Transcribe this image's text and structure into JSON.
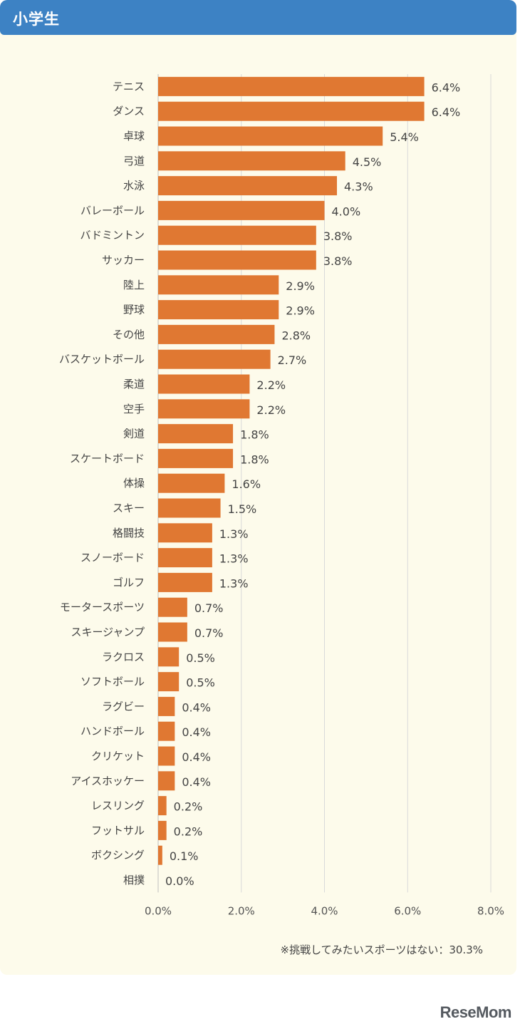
{
  "header": {
    "title": "小学生"
  },
  "note": "※挑戦してみたいスポーツはない：30.3%",
  "logo": {
    "text": "ReseMom"
  },
  "colors": {
    "bar": "#e07832",
    "header": "#3d82c4",
    "panel": "#fdfbeb",
    "grid": "#d9d9d9"
  },
  "chart_data": {
    "type": "bar",
    "orientation": "horizontal",
    "categories": [
      "テニス",
      "ダンス",
      "卓球",
      "弓道",
      "水泳",
      "バレーボール",
      "バドミントン",
      "サッカー",
      "陸上",
      "野球",
      "その他",
      "バスケットボール",
      "柔道",
      "空手",
      "剣道",
      "スケートボード",
      "体操",
      "スキー",
      "格闘技",
      "スノーボード",
      "ゴルフ",
      "モータースポーツ",
      "スキージャンプ",
      "ラクロス",
      "ソフトボール",
      "ラグビー",
      "ハンドボール",
      "クリケット",
      "アイスホッケー",
      "レスリング",
      "フットサル",
      "ボクシング",
      "相撲"
    ],
    "values": [
      6.4,
      6.4,
      5.4,
      4.5,
      4.3,
      4.0,
      3.8,
      3.8,
      2.9,
      2.9,
      2.8,
      2.7,
      2.2,
      2.2,
      1.8,
      1.8,
      1.6,
      1.5,
      1.3,
      1.3,
      1.3,
      0.7,
      0.7,
      0.5,
      0.5,
      0.4,
      0.4,
      0.4,
      0.4,
      0.2,
      0.2,
      0.1,
      0.0
    ],
    "value_labels": [
      "6.4%",
      "6.4%",
      "5.4%",
      "4.5%",
      "4.3%",
      "4.0%",
      "3.8%",
      "3.8%",
      "2.9%",
      "2.9%",
      "2.8%",
      "2.7%",
      "2.2%",
      "2.2%",
      "1.8%",
      "1.8%",
      "1.6%",
      "1.5%",
      "1.3%",
      "1.3%",
      "1.3%",
      "0.7%",
      "0.7%",
      "0.5%",
      "0.5%",
      "0.4%",
      "0.4%",
      "0.4%",
      "0.4%",
      "0.2%",
      "0.2%",
      "0.1%",
      "0.0%"
    ],
    "xlim": [
      0,
      8
    ],
    "x_ticks": [
      "0.0%",
      "2.0%",
      "4.0%",
      "6.0%",
      "8.0%"
    ],
    "grid": true,
    "legend": "none"
  }
}
